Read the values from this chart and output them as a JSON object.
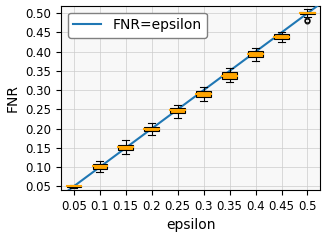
{
  "epsilons": [
    0.05,
    0.1,
    0.15,
    0.2,
    0.25,
    0.3,
    0.35,
    0.4,
    0.45,
    0.5
  ],
  "box_data": [
    {
      "median": 0.05,
      "q1": 0.048,
      "q3": 0.052,
      "whislo": 0.046,
      "whishi": 0.054,
      "fliers": []
    },
    {
      "median": 0.102,
      "q1": 0.095,
      "q3": 0.107,
      "whislo": 0.088,
      "whishi": 0.115,
      "fliers": []
    },
    {
      "median": 0.152,
      "q1": 0.145,
      "q3": 0.158,
      "whislo": 0.135,
      "whishi": 0.17,
      "fliers": []
    },
    {
      "median": 0.2,
      "q1": 0.193,
      "q3": 0.205,
      "whislo": 0.183,
      "whishi": 0.215,
      "fliers": []
    },
    {
      "median": 0.248,
      "q1": 0.24,
      "q3": 0.254,
      "whislo": 0.228,
      "whishi": 0.262,
      "fliers": []
    },
    {
      "median": 0.29,
      "q1": 0.282,
      "q3": 0.298,
      "whislo": 0.272,
      "whishi": 0.308,
      "fliers": []
    },
    {
      "median": 0.338,
      "q1": 0.33,
      "q3": 0.348,
      "whislo": 0.32,
      "whishi": 0.358,
      "fliers": []
    },
    {
      "median": 0.395,
      "q1": 0.385,
      "q3": 0.402,
      "whislo": 0.375,
      "whishi": 0.41,
      "fliers": []
    },
    {
      "median": 0.438,
      "q1": 0.432,
      "q3": 0.445,
      "whislo": 0.425,
      "whishi": 0.452,
      "fliers": []
    },
    {
      "median": 0.5,
      "q1": 0.497,
      "q3": 0.503,
      "whislo": 0.49,
      "whishi": 0.51,
      "fliers": [
        0.48,
        0.483
      ]
    }
  ],
  "line_color": "#1f77b4",
  "box_facecolor": "orange",
  "box_edgecolor": "black",
  "median_color": "orange",
  "whisker_color": "black",
  "flier_color": "black",
  "xlabel": "epsilon",
  "ylabel": "FNR",
  "legend_label": "FNR=epsilon",
  "xlim": [
    0.025,
    0.525
  ],
  "ylim": [
    0.04,
    0.52
  ],
  "xticks": [
    0.05,
    0.1,
    0.15,
    0.2,
    0.25,
    0.3,
    0.35,
    0.4,
    0.45,
    0.5
  ],
  "yticks": [
    0.05,
    0.1,
    0.15,
    0.2,
    0.25,
    0.3,
    0.35,
    0.4,
    0.45,
    0.5
  ],
  "grid_color": "#cccccc",
  "background_color": "#f8f8f8",
  "legend_fontsize": 10,
  "label_fontsize": 10,
  "tick_fontsize": 8.5,
  "box_width": 0.028
}
